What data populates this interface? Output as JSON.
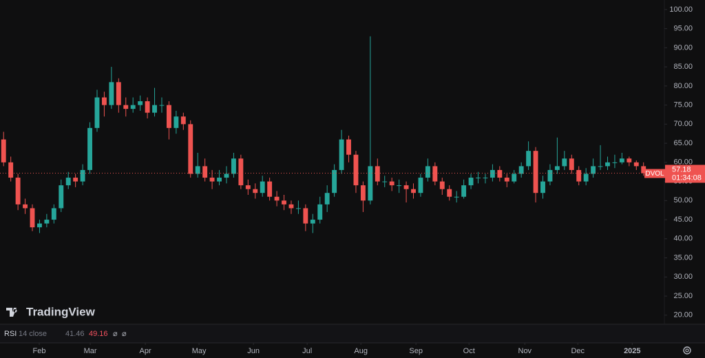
{
  "chart_data": {
    "type": "candlestick",
    "brand": "TradingView",
    "up_color": "#26a69a",
    "down_color": "#ef5350",
    "open": [
      66,
      60,
      56,
      49,
      48,
      43,
      44,
      45,
      48,
      54,
      56,
      55,
      58,
      69,
      77,
      75,
      81,
      75,
      74,
      75,
      76,
      73,
      75,
      75,
      69,
      72,
      70,
      57,
      59,
      56,
      55,
      56,
      57,
      61,
      54,
      53,
      52,
      55,
      51,
      50,
      49,
      48,
      48,
      44,
      45,
      49,
      52,
      58,
      66,
      62,
      54,
      50,
      59,
      55,
      55,
      54,
      54,
      53,
      52,
      56,
      59,
      55,
      53,
      51,
      51,
      54,
      56,
      56,
      56,
      58,
      56,
      55,
      57,
      59,
      63,
      52,
      55,
      58,
      59,
      61,
      58,
      55,
      57,
      59,
      59,
      60,
      60,
      61,
      60,
      59
    ],
    "high": [
      68,
      61.5,
      57,
      50.5,
      49,
      45,
      46.5,
      49,
      55.5,
      57.5,
      57,
      59.5,
      70.5,
      79,
      78.5,
      85,
      82,
      77,
      77,
      77.5,
      77,
      79.5,
      77,
      76,
      73.5,
      73,
      71,
      62.5,
      61,
      58,
      58,
      59,
      62.5,
      62,
      55.5,
      54.5,
      56.5,
      56,
      52.5,
      51.5,
      50,
      50,
      49,
      46.5,
      51,
      54,
      59.5,
      68.5,
      67,
      63,
      55,
      93,
      61,
      56.5,
      56,
      55.5,
      55,
      54.5,
      57,
      61,
      60,
      56,
      54,
      52.5,
      55.5,
      57,
      57.5,
      57,
      59.5,
      59,
      57,
      58,
      60,
      65.5,
      64,
      56.5,
      59.5,
      66.5,
      63,
      62,
      59,
      58.5,
      61,
      64.5,
      61.5,
      62,
      62.5,
      61.5,
      60.5,
      60
    ],
    "low": [
      59,
      55,
      47.5,
      46.5,
      42,
      41.5,
      43,
      44,
      47,
      53,
      53.5,
      54,
      57,
      68,
      72,
      74,
      73,
      72,
      73,
      73.5,
      71.5,
      72,
      73,
      66,
      67.5,
      68.5,
      56,
      56,
      55,
      53,
      54,
      54.5,
      56,
      53,
      51.5,
      50.5,
      51,
      50,
      48.5,
      47.5,
      46.5,
      46.5,
      42,
      41.5,
      44,
      47,
      51,
      57,
      60,
      52,
      47,
      49,
      54,
      53.5,
      52.5,
      52,
      49.5,
      50.5,
      51,
      55,
      54,
      51.5,
      50,
      49.5,
      50.5,
      53,
      54.5,
      54.5,
      55,
      55,
      53.5,
      54.5,
      56,
      58,
      49.5,
      50.5,
      54,
      57,
      58,
      57,
      54,
      54,
      56,
      58,
      58,
      58.5,
      59.5,
      59,
      58,
      56.5
    ],
    "close": [
      60,
      56,
      49,
      48,
      43,
      44,
      45,
      48,
      54,
      56,
      55,
      58,
      69,
      77,
      75,
      81,
      75,
      74,
      75,
      76,
      73,
      75,
      75,
      69,
      72,
      70,
      57,
      59,
      56,
      55,
      56,
      57,
      61,
      54,
      53,
      52,
      55,
      51,
      50,
      49,
      48,
      48,
      44,
      45,
      49,
      52,
      58,
      66,
      62,
      54,
      50,
      59,
      55,
      55,
      54,
      54,
      53,
      52,
      56,
      59,
      55,
      53,
      51,
      51,
      54,
      56,
      56,
      56,
      58,
      56,
      55,
      57,
      59,
      63,
      52,
      55,
      58,
      59,
      61,
      58,
      55,
      57,
      59,
      59,
      60,
      60,
      61,
      60,
      59,
      57.18
    ],
    "xlim": [
      0,
      92.4
    ],
    "xticks": [
      {
        "value": 5.46,
        "label": "Feb"
      },
      {
        "value": 12.55,
        "label": "Mar"
      },
      {
        "value": 20.21,
        "label": "Apr"
      },
      {
        "value": 27.68,
        "label": "May"
      },
      {
        "value": 35.25,
        "label": "Jun"
      },
      {
        "value": 42.72,
        "label": "Jul"
      },
      {
        "value": 50.19,
        "label": "Aug"
      },
      {
        "value": 57.85,
        "label": "Sep"
      },
      {
        "value": 65.23,
        "label": "Oct"
      },
      {
        "value": 72.99,
        "label": "Nov"
      },
      {
        "value": 80.36,
        "label": "Dec"
      },
      {
        "value": 87.93,
        "label": "2025"
      }
    ],
    "ylim": [
      17.8,
      102.5
    ],
    "yticks": [
      {
        "value": 20,
        "label": "20.00"
      },
      {
        "value": 25,
        "label": "25.00"
      },
      {
        "value": 30,
        "label": "30.00"
      },
      {
        "value": 35,
        "label": "35.00"
      },
      {
        "value": 40,
        "label": "40.00"
      },
      {
        "value": 45,
        "label": "45.00"
      },
      {
        "value": 50,
        "label": "50.00"
      },
      {
        "value": 55,
        "label": "55.00"
      },
      {
        "value": 60,
        "label": "60.00"
      },
      {
        "value": 65,
        "label": "65.00"
      },
      {
        "value": 70,
        "label": "70.00"
      },
      {
        "value": 75,
        "label": "75.00"
      },
      {
        "value": 80,
        "label": "80.00"
      },
      {
        "value": 85,
        "label": "85.00"
      },
      {
        "value": 90,
        "label": "90.00"
      },
      {
        "value": 95,
        "label": "95.00"
      },
      {
        "value": 100,
        "label": "100.00"
      }
    ],
    "last_price": {
      "symbol": "DVOL",
      "value": 57.18,
      "countdown": "01:34:08"
    },
    "indicator": {
      "name": "RSI",
      "params": "14 close",
      "values": [
        41.46,
        49.16
      ],
      "colors": [
        "#787b86",
        "#f7525f"
      ],
      "placeholders": [
        "⌀",
        "⌀"
      ]
    }
  }
}
